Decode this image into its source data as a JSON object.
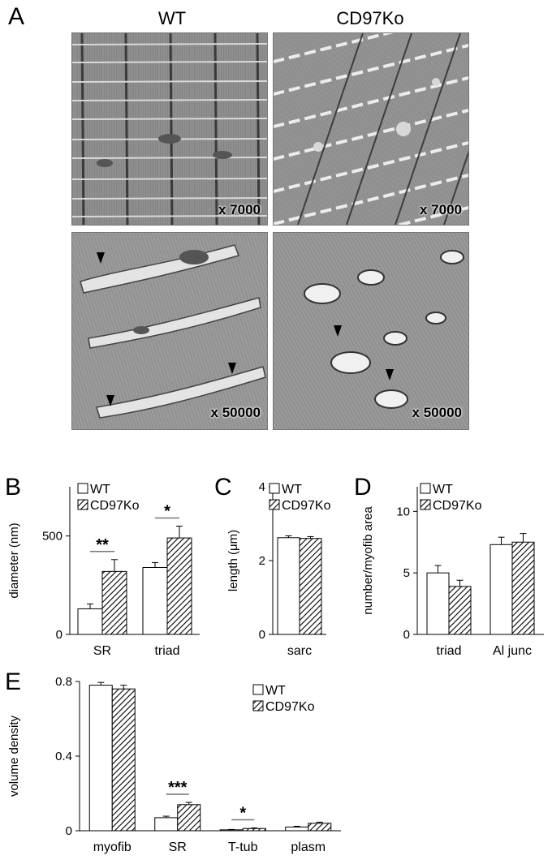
{
  "panel_a": {
    "letter": "A",
    "columns": [
      "WT",
      "CD97Ko"
    ],
    "magnifications": [
      "x 7000",
      "x 7000",
      "x 50000",
      "x 50000"
    ]
  },
  "colors": {
    "wt_fill": "#ffffff",
    "ko_hatch": "#000000",
    "em_background": "#8a8a8a"
  },
  "chart_data": [
    {
      "panel": "B",
      "type": "bar",
      "categories": [
        "SR",
        "triad"
      ],
      "ylabel": "diameter (nm)",
      "ylim": [
        0,
        750
      ],
      "yticks": [
        0,
        500
      ],
      "legend": "top-left",
      "series": [
        {
          "name": "WT",
          "values": [
            130,
            340
          ],
          "errors": [
            25,
            25
          ]
        },
        {
          "name": "CD97Ko",
          "values": [
            320,
            490
          ],
          "errors": [
            60,
            60
          ]
        }
      ],
      "significance": [
        {
          "category": "SR",
          "label": "**"
        },
        {
          "category": "triad",
          "label": "*"
        }
      ]
    },
    {
      "panel": "C",
      "type": "bar",
      "categories": [
        "sarc"
      ],
      "ylabel": "length (μm)",
      "ylim": [
        0,
        4
      ],
      "yticks": [
        0,
        2,
        4
      ],
      "legend": "top-left",
      "series": [
        {
          "name": "WT",
          "values": [
            2.62
          ],
          "errors": [
            0.05
          ]
        },
        {
          "name": "CD97Ko",
          "values": [
            2.6
          ],
          "errors": [
            0.05
          ]
        }
      ],
      "significance": []
    },
    {
      "panel": "D",
      "type": "bar",
      "categories": [
        "triad",
        "Al junc"
      ],
      "ylabel": "number/myofib area",
      "ylim": [
        0,
        12
      ],
      "yticks": [
        0,
        5,
        10
      ],
      "legend": "top-left",
      "series": [
        {
          "name": "WT",
          "values": [
            5.0,
            7.3
          ],
          "errors": [
            0.6,
            0.6
          ]
        },
        {
          "name": "CD97Ko",
          "values": [
            3.9,
            7.5
          ],
          "errors": [
            0.5,
            0.7
          ]
        }
      ],
      "significance": []
    },
    {
      "panel": "E",
      "type": "bar",
      "categories": [
        "myofib",
        "SR",
        "T-tub",
        "plasm"
      ],
      "ylabel": "volume density",
      "ylim": [
        0,
        0.8
      ],
      "yticks": [
        0,
        0.4,
        0.8
      ],
      "legend": "top-right",
      "series": [
        {
          "name": "WT",
          "values": [
            0.78,
            0.07,
            0.005,
            0.02
          ],
          "errors": [
            0.015,
            0.008,
            0.002,
            0.004
          ]
        },
        {
          "name": "CD97Ko",
          "values": [
            0.76,
            0.14,
            0.012,
            0.04
          ],
          "errors": [
            0.02,
            0.012,
            0.003,
            0.006
          ]
        }
      ],
      "significance": [
        {
          "category": "SR",
          "label": "***"
        },
        {
          "category": "T-tub",
          "label": "*"
        }
      ]
    }
  ]
}
